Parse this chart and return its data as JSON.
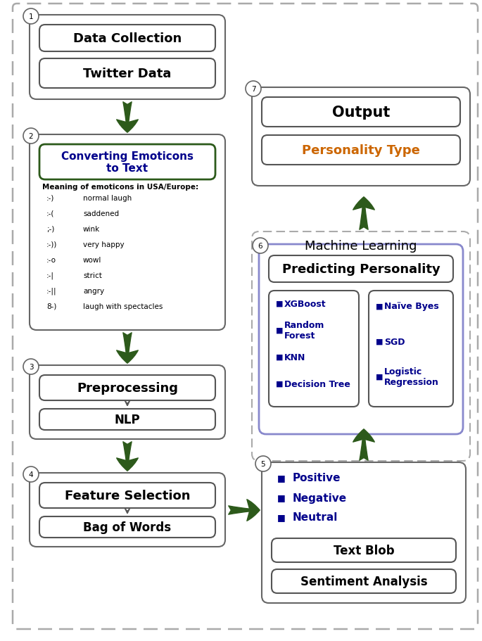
{
  "bg_color": "#ffffff",
  "arrow_color": "#2d5a1b",
  "dark_blue_text": "#00008B",
  "orange_text": "#cc6600",
  "black_text": "#000000",
  "box_border": "#555555",
  "ml_border": "#aaaaaa",
  "pp_border": "#7777cc",
  "emoticons": [
    [
      ":-)",
      "normal laugh"
    ],
    [
      ":-(",
      "saddened"
    ],
    [
      ";-)",
      "wink"
    ],
    [
      ":-))",
      "very happy"
    ],
    [
      ":-o",
      "wowl"
    ],
    [
      ":-|",
      "strict"
    ],
    [
      ":-||",
      "angry"
    ],
    [
      "8-)",
      "laugh with spectacles"
    ]
  ],
  "left_algo": [
    "XGBoost",
    "Random\nForest",
    "KNN",
    "Decision Tree"
  ],
  "right_algo": [
    "Naïve Byes",
    "SGD",
    "Logistic\nRegression"
  ],
  "bullets": [
    "Positive",
    "Negative",
    "Neutral"
  ]
}
